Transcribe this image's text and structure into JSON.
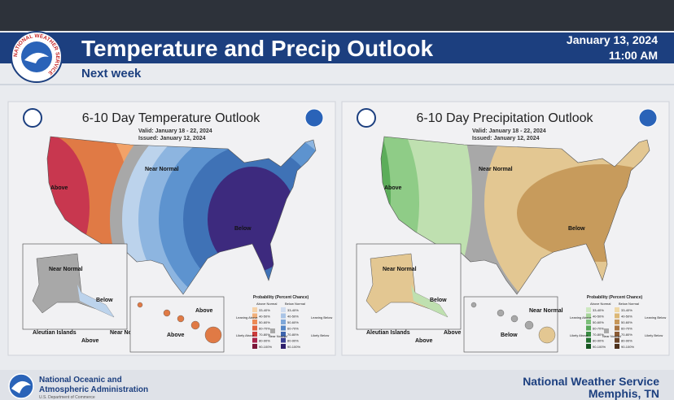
{
  "header": {
    "title": "Temperature and Precip Outlook",
    "subtitle": "Next week",
    "date": "January 13, 2024",
    "time": "11:00 AM",
    "logo_text": "NATIONAL WEATHER SERVICE"
  },
  "panels": [
    {
      "title": "6-10 Day Temperature Outlook",
      "valid": "Valid:  January 18 - 22, 2024",
      "issued": "Issued:  January 12, 2024",
      "labels": {
        "west": "Above",
        "mid": "Near Normal",
        "east": "Below",
        "alaska_a": "Near Normal",
        "alaska_b": "Below",
        "aleutian": "Aleutian Islands",
        "aleutian_a": "Above",
        "aleutian_b": "Near Normal",
        "hawaii_a": "Above",
        "hawaii_b": "Above"
      },
      "legend": {
        "title": "Probability (Percent Chance)",
        "left_heading": "Above Normal",
        "right_heading": "Below Normal",
        "cat_1": "Leaning Above",
        "cat_2": "Likely Above",
        "cat_3": "Near Normal",
        "cat_4": "Leaning Below",
        "cat_5": "Likely Below",
        "ranges": [
          "33-40%",
          "40-50%",
          "50-60%",
          "60-70%",
          "70-80%",
          "80-90%",
          "90-100%"
        ]
      }
    },
    {
      "title": "6-10 Day Precipitation Outlook",
      "valid": "Valid:  January 18 - 22, 2024",
      "issued": "Issued:  January 12, 2024",
      "labels": {
        "west": "Above",
        "mid": "Near Normal",
        "east": "Below",
        "alaska_a": "Near Normal",
        "alaska_b": "Below",
        "aleutian": "Aleutian Islands",
        "aleutian_a": "Above",
        "aleutian_b": "Above",
        "hawaii_a": "Near Normal",
        "hawaii_b": "Below"
      },
      "legend": {
        "title": "Probability (Percent Chance)",
        "left_heading": "Above Normal",
        "right_heading": "Below Normal",
        "cat_1": "Leaning Above",
        "cat_2": "Likely Above",
        "cat_3": "Near Normal",
        "cat_4": "Leaning Below",
        "cat_5": "Likely Below",
        "ranges": [
          "33-40%",
          "40-50%",
          "50-60%",
          "60-70%",
          "70-80%",
          "80-90%",
          "90-100%"
        ]
      }
    }
  ],
  "footer": {
    "agency_1": "National Oceanic and",
    "agency_2": "Atmospheric Administration",
    "department": "U.S. Department of Commerce",
    "office": "National Weather Service",
    "location": "Memphis, TN"
  }
}
